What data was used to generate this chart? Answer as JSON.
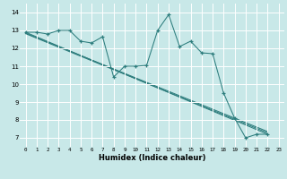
{
  "title": "",
  "xlabel": "Humidex (Indice chaleur)",
  "ylabel": "",
  "background_color": "#c8e8e8",
  "grid_color": "#ffffff",
  "line_color": "#2d7d7d",
  "xlim": [
    -0.5,
    23.5
  ],
  "ylim": [
    6.5,
    14.5
  ],
  "xticks": [
    0,
    1,
    2,
    3,
    4,
    5,
    6,
    7,
    8,
    9,
    10,
    11,
    12,
    13,
    14,
    15,
    16,
    17,
    18,
    19,
    20,
    21,
    22,
    23
  ],
  "yticks": [
    7,
    8,
    9,
    10,
    11,
    12,
    13,
    14
  ],
  "series1_x": [
    0,
    1,
    2,
    3,
    4,
    5,
    6,
    7,
    8,
    9,
    10,
    11,
    12,
    13,
    14,
    15,
    16,
    17,
    18,
    19,
    20,
    21,
    22
  ],
  "series1_y": [
    12.9,
    12.9,
    12.8,
    13.0,
    13.0,
    12.4,
    12.3,
    12.65,
    10.4,
    11.0,
    11.0,
    11.05,
    13.0,
    13.88,
    12.1,
    12.4,
    11.75,
    11.7,
    9.5,
    8.1,
    7.0,
    7.2,
    7.2
  ],
  "trend1_x": [
    0,
    22
  ],
  "trend1_y": [
    12.9,
    7.2
  ],
  "trend2_x": [
    0,
    22
  ],
  "trend2_y": [
    12.85,
    7.35
  ],
  "trend3_x": [
    0,
    22
  ],
  "trend3_y": [
    12.82,
    7.28
  ]
}
